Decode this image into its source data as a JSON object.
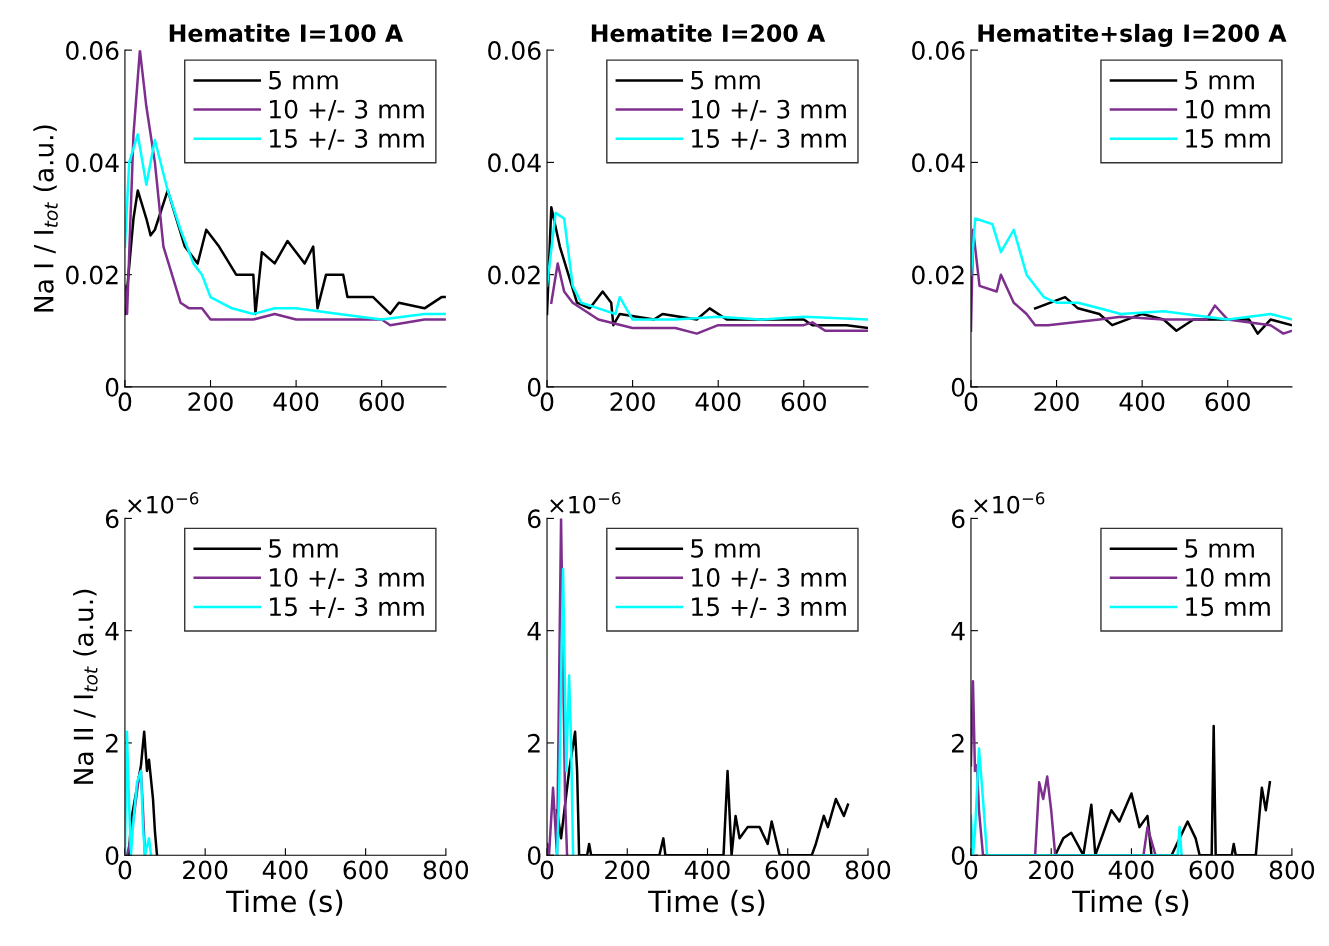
{
  "chart_data": [
    {
      "type": "line",
      "title": "Hematite I=100 A",
      "ylabel": "Na I / I$_{tot}$ (a.u.)",
      "xlim": [
        0,
        750
      ],
      "xticks": [
        0,
        200,
        400,
        600
      ],
      "ylim": [
        0,
        0.06
      ],
      "yticks": [
        0,
        0.02,
        0.04,
        0.06
      ],
      "legend": "top right",
      "grid": false,
      "series": [
        {
          "name": "5 mm",
          "color": "#000000",
          "x": [
            0,
            20,
            30,
            50,
            60,
            70,
            100,
            140,
            170,
            190,
            220,
            260,
            300,
            305,
            320,
            350,
            380,
            420,
            440,
            450,
            470,
            510,
            520,
            580,
            620,
            640,
            700,
            740,
            750
          ],
          "values": [
            0.013,
            0.03,
            0.035,
            0.03,
            0.027,
            0.028,
            0.035,
            0.025,
            0.022,
            0.028,
            0.025,
            0.02,
            0.02,
            0.013,
            0.024,
            0.022,
            0.026,
            0.022,
            0.025,
            0.014,
            0.02,
            0.02,
            0.016,
            0.016,
            0.013,
            0.015,
            0.014,
            0.016,
            0.016
          ]
        },
        {
          "name": "10 +/- 3 mm",
          "color": "#7e2f8e",
          "x": [
            0,
            5,
            20,
            35,
            50,
            70,
            90,
            110,
            130,
            150,
            180,
            200,
            250,
            300,
            350,
            400,
            500,
            600,
            620,
            700,
            750
          ],
          "values": [
            0.018,
            0.013,
            0.045,
            0.06,
            0.05,
            0.04,
            0.025,
            0.02,
            0.015,
            0.014,
            0.014,
            0.012,
            0.012,
            0.012,
            0.013,
            0.012,
            0.012,
            0.012,
            0.011,
            0.012,
            0.012
          ]
        },
        {
          "name": "15 +/- 3 mm",
          "color": "#00ffff",
          "x": [
            0,
            10,
            30,
            50,
            70,
            100,
            130,
            160,
            180,
            200,
            250,
            300,
            350,
            400,
            500,
            600,
            700,
            750
          ],
          "values": [
            0.025,
            0.04,
            0.045,
            0.036,
            0.044,
            0.035,
            0.028,
            0.022,
            0.02,
            0.016,
            0.014,
            0.013,
            0.014,
            0.014,
            0.013,
            0.012,
            0.013,
            0.013
          ]
        }
      ]
    },
    {
      "type": "line",
      "title": "Hematite I=200 A",
      "xlim": [
        0,
        750
      ],
      "xticks": [
        0,
        200,
        400,
        600
      ],
      "ylim": [
        0,
        0.06
      ],
      "yticks": [
        0,
        0.02,
        0.04,
        0.06
      ],
      "legend": "top right",
      "grid": false,
      "series": [
        {
          "name": "5 mm",
          "color": "#000000",
          "x": [
            0,
            10,
            30,
            50,
            70,
            100,
            130,
            150,
            155,
            170,
            250,
            270,
            350,
            380,
            420,
            600,
            620,
            700,
            750
          ],
          "values": [
            0.013,
            0.032,
            0.025,
            0.02,
            0.015,
            0.014,
            0.017,
            0.015,
            0.011,
            0.013,
            0.012,
            0.013,
            0.012,
            0.014,
            0.012,
            0.012,
            0.011,
            0.011,
            0.0105
          ]
        },
        {
          "name": "10 +/- 3 mm",
          "color": "#7e2f8e",
          "x": [
            10,
            25,
            40,
            60,
            120,
            200,
            300,
            350,
            400,
            500,
            600,
            620,
            650,
            750
          ],
          "values": [
            0.015,
            0.022,
            0.017,
            0.015,
            0.012,
            0.0105,
            0.0105,
            0.0095,
            0.011,
            0.011,
            0.011,
            0.0115,
            0.01,
            0.01
          ]
        },
        {
          "name": "15 +/- 3 mm",
          "color": "#00ffff",
          "x": [
            0,
            20,
            40,
            60,
            80,
            120,
            160,
            170,
            200,
            300,
            400,
            500,
            600,
            750
          ],
          "values": [
            0.018,
            0.031,
            0.03,
            0.018,
            0.015,
            0.014,
            0.013,
            0.016,
            0.012,
            0.012,
            0.0125,
            0.012,
            0.0125,
            0.012
          ]
        }
      ]
    },
    {
      "type": "line",
      "title": "Hematite+slag I=200 A",
      "xlim": [
        0,
        750
      ],
      "xticks": [
        0,
        200,
        400,
        600
      ],
      "ylim": [
        0,
        0.06
      ],
      "yticks": [
        0,
        0.02,
        0.04,
        0.06
      ],
      "legend": "top right",
      "grid": false,
      "series": [
        {
          "name": "5 mm",
          "color": "#000000",
          "x": [
            150,
            220,
            250,
            300,
            330,
            400,
            450,
            480,
            520,
            600,
            650,
            670,
            700,
            750
          ],
          "values": [
            0.014,
            0.016,
            0.014,
            0.013,
            0.011,
            0.013,
            0.012,
            0.01,
            0.012,
            0.012,
            0.012,
            0.0095,
            0.012,
            0.011
          ]
        },
        {
          "name": "10 mm",
          "color": "#7e2f8e",
          "x": [
            0,
            5,
            20,
            60,
            70,
            100,
            130,
            150,
            180,
            300,
            350,
            450,
            550,
            570,
            600,
            700,
            730,
            750
          ],
          "values": [
            0.01,
            0.028,
            0.018,
            0.017,
            0.02,
            0.015,
            0.013,
            0.011,
            0.011,
            0.012,
            0.0125,
            0.012,
            0.012,
            0.0145,
            0.012,
            0.011,
            0.0095,
            0.01
          ]
        },
        {
          "name": "15 mm",
          "color": "#00ffff",
          "x": [
            0,
            10,
            50,
            70,
            100,
            130,
            170,
            200,
            250,
            300,
            350,
            450,
            500,
            550,
            600,
            700,
            750
          ],
          "values": [
            0.02,
            0.03,
            0.029,
            0.024,
            0.028,
            0.02,
            0.016,
            0.015,
            0.015,
            0.014,
            0.013,
            0.0135,
            0.013,
            0.0125,
            0.012,
            0.013,
            0.012
          ]
        }
      ]
    },
    {
      "type": "line",
      "xlabel": "Time (s)",
      "ylabel": "Na II / I$_{tot}$ (a.u.)",
      "annotations": [
        "×10$^{−6}$"
      ],
      "xlim": [
        0,
        800
      ],
      "xticks": [
        0,
        200,
        400,
        600,
        800
      ],
      "ylim": [
        0,
        6
      ],
      "yticks": [
        0,
        2,
        4,
        6
      ],
      "legend": "top right",
      "grid": false,
      "series": [
        {
          "name": "5 mm",
          "color": "#000000",
          "x": [
            0,
            10,
            15,
            30,
            40,
            48,
            55,
            60,
            70,
            75,
            80
          ],
          "values": [
            0,
            0,
            0.6,
            1.2,
            1.6,
            2.2,
            1.5,
            1.7,
            1.0,
            0.4,
            0
          ]
        },
        {
          "name": "10 +/- 3 mm",
          "color": "#7e2f8e",
          "x": [
            5,
            15,
            35,
            40,
            45,
            50
          ],
          "values": [
            0,
            0.3,
            1.4,
            1.5,
            0.8,
            0
          ]
        },
        {
          "name": "15 +/- 3 mm",
          "color": "#00ffff",
          "x": [
            0,
            5,
            10,
            15,
            20,
            30,
            40,
            45,
            50,
            60,
            65
          ],
          "values": [
            0,
            2.2,
            1.0,
            0,
            0.5,
            1.3,
            1.5,
            0.5,
            0,
            0.3,
            0
          ]
        }
      ]
    },
    {
      "type": "line",
      "xlabel": "Time (s)",
      "annotations": [
        "×10$^{−6}$"
      ],
      "xlim": [
        0,
        800
      ],
      "xticks": [
        0,
        200,
        400,
        600,
        800
      ],
      "ylim": [
        0,
        6
      ],
      "yticks": [
        0,
        2,
        4,
        6
      ],
      "legend": "top right",
      "grid": false,
      "series": [
        {
          "name": "5 mm",
          "color": "#000000",
          "x": [
            25,
            35,
            55,
            70,
            75,
            80,
            100,
            105,
            110,
            280,
            290,
            295,
            440,
            450,
            460,
            470,
            480,
            500,
            530,
            550,
            560,
            580,
            660,
            670,
            690,
            700,
            720,
            740,
            750
          ],
          "values": [
            0.8,
            0.3,
            1.5,
            2.2,
            1.5,
            0,
            0,
            0.2,
            0,
            0,
            0.3,
            0,
            0,
            1.5,
            0,
            0.7,
            0.3,
            0.5,
            0.5,
            0.2,
            0.6,
            0,
            0,
            0.2,
            0.7,
            0.5,
            1.0,
            0.7,
            0.9
          ]
        },
        {
          "name": "10 +/- 3 mm",
          "color": "#7e2f8e",
          "x": [
            0,
            5,
            15,
            25,
            35,
            45,
            50
          ],
          "values": [
            0.2,
            0,
            1.2,
            0,
            6,
            1.0,
            0
          ]
        },
        {
          "name": "15 +/- 3 mm",
          "color": "#00ffff",
          "x": [
            25,
            30,
            40,
            48,
            55,
            60,
            65
          ],
          "values": [
            0,
            1.0,
            5.1,
            1.5,
            3.2,
            2.0,
            0
          ]
        }
      ]
    },
    {
      "type": "line",
      "xlabel": "Time (s)",
      "annotations": [
        "×10$^{−6}$"
      ],
      "xlim": [
        0,
        800
      ],
      "xticks": [
        0,
        200,
        400,
        600,
        800
      ],
      "ylim": [
        0,
        6
      ],
      "yticks": [
        0,
        2,
        4,
        6
      ],
      "legend": "top right",
      "grid": false,
      "series": [
        {
          "name": "5 mm",
          "color": "#000000",
          "x": [
            210,
            230,
            250,
            280,
            300,
            310,
            330,
            350,
            370,
            400,
            420,
            440,
            450,
            500,
            520,
            540,
            560,
            570,
            600,
            605,
            610,
            650,
            655,
            660,
            710,
            725,
            735,
            745
          ],
          "values": [
            0,
            0.3,
            0.4,
            0,
            0.9,
            0,
            0.4,
            0.8,
            0.6,
            1.1,
            0.5,
            0.7,
            0,
            0,
            0.3,
            0.6,
            0.3,
            0,
            0,
            2.3,
            0,
            0,
            0.2,
            0,
            0,
            1.2,
            0.8,
            1.3
          ]
        },
        {
          "name": "10 mm",
          "color": "#7e2f8e",
          "x": [
            0,
            5,
            10,
            15,
            20,
            30,
            160,
            170,
            180,
            190,
            200,
            210,
            430,
            440,
            460
          ],
          "values": [
            1.6,
            3.1,
            1.5,
            1.6,
            0.8,
            0,
            0,
            1.3,
            1.0,
            1.4,
            0.8,
            0,
            0,
            0.5,
            0
          ]
        },
        {
          "name": "15 mm",
          "color": "#00ffff",
          "x": [
            0,
            5,
            10,
            20,
            30,
            40,
            515,
            520,
            525
          ],
          "values": [
            0.7,
            0,
            0.4,
            1.9,
            1.0,
            0,
            0,
            0.5,
            0
          ]
        }
      ]
    }
  ]
}
